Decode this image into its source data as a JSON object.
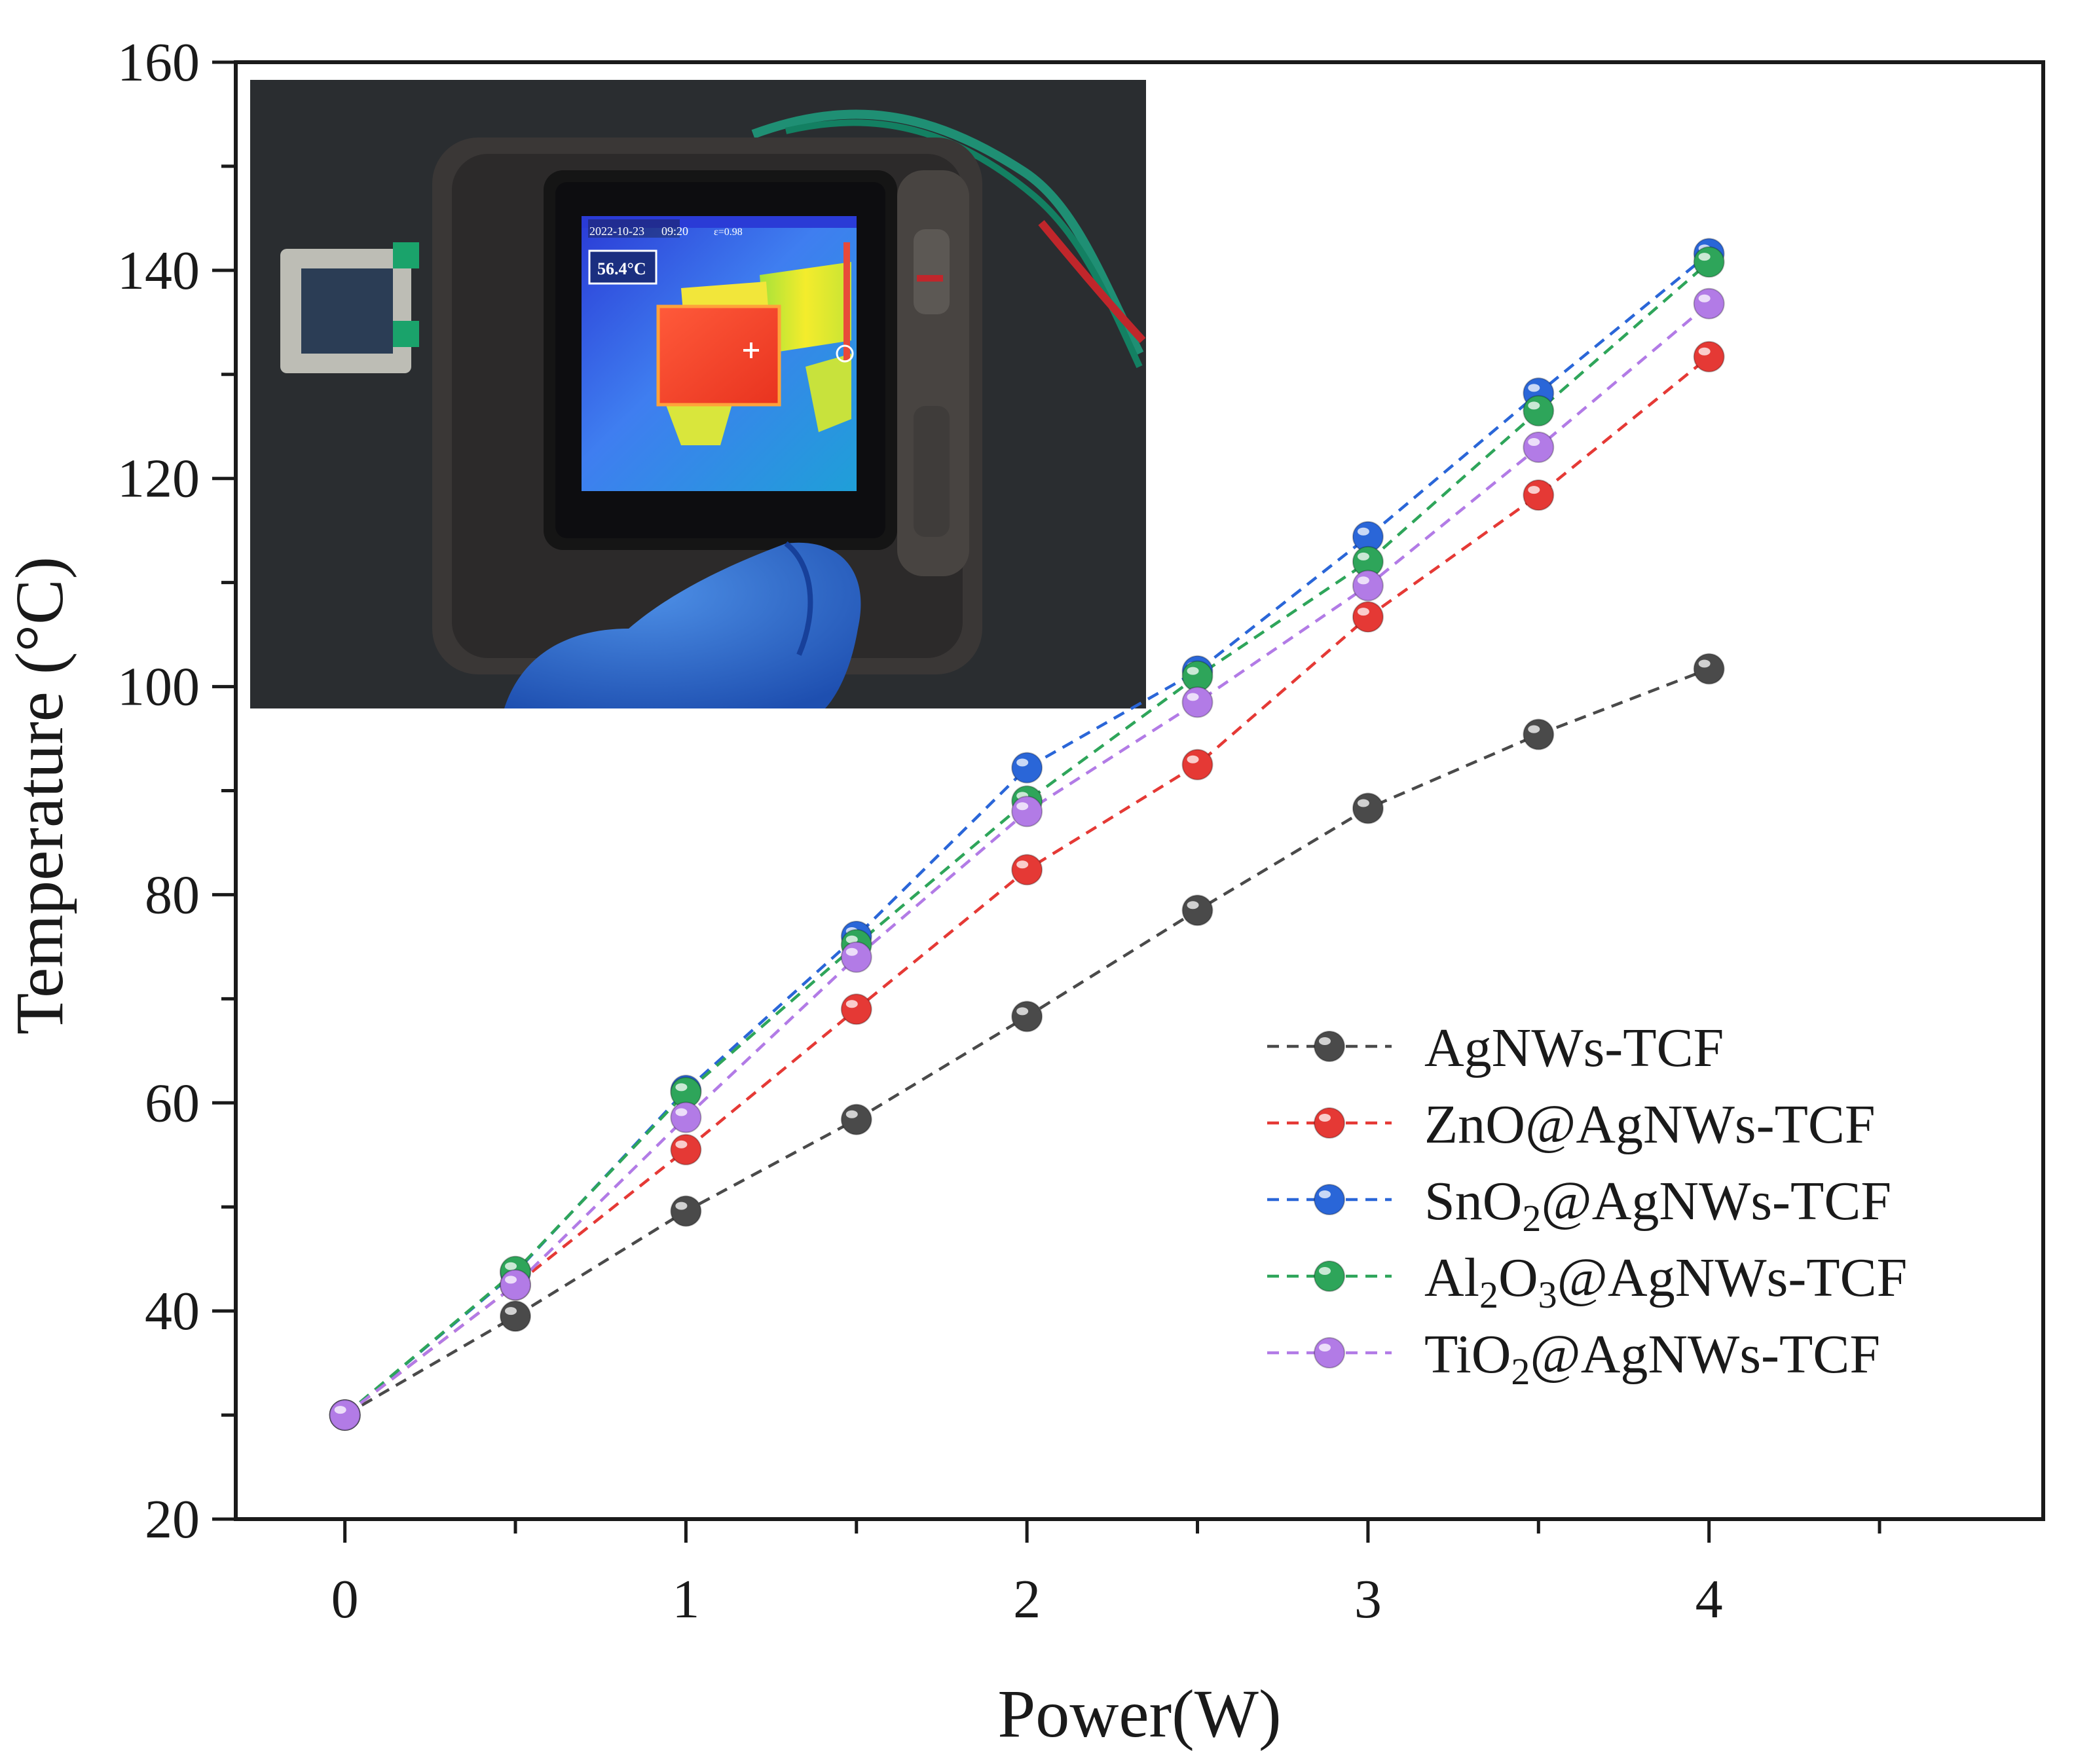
{
  "chart_data": {
    "type": "line",
    "xlabel": "Power(W)",
    "ylabel": "Temperature (°C)",
    "xlim": [
      -0.32,
      4.98
    ],
    "ylim": [
      20,
      160
    ],
    "x": [
      0,
      0.5,
      1,
      1.5,
      2,
      2.5,
      3,
      3.5,
      4
    ],
    "xticks": [
      0,
      1,
      2,
      3,
      4
    ],
    "xtick_labels": [
      "0",
      "1",
      "2",
      "3",
      "4"
    ],
    "yticks": [
      20,
      40,
      60,
      80,
      100,
      120,
      140,
      160
    ],
    "ytick_labels": [
      "20",
      "40",
      "60",
      "80",
      "100",
      "120",
      "140",
      "160"
    ],
    "grid": false,
    "legend_position": "bottom-right",
    "line_style": "dashed",
    "series": [
      {
        "name": "AgNWs-TCF",
        "name_parts": [
          {
            "t": "AgNWs-TCF"
          }
        ],
        "color": "#4a4a4a",
        "values": [
          30,
          39.5,
          49.6,
          58.4,
          68.3,
          78.5,
          88.3,
          95.4,
          101.7
        ]
      },
      {
        "name": "ZnO@AgNWs-TCF",
        "name_parts": [
          {
            "t": "ZnO@AgNWs-TCF"
          }
        ],
        "color": "#e53935",
        "values": [
          30,
          42.5,
          55.5,
          69,
          82.4,
          92.5,
          106.7,
          118.4,
          131.7
        ]
      },
      {
        "name": "SnO2@AgNWs-TCF",
        "name_parts": [
          {
            "t": "SnO"
          },
          {
            "t": "2",
            "sub": true
          },
          {
            "t": "@AgNWs-TCF"
          }
        ],
        "color": "#2a66d8",
        "values": [
          30,
          43.7,
          61.2,
          76,
          92.2,
          101.5,
          114.4,
          128.2,
          141.6
        ]
      },
      {
        "name": "Al2O3@AgNWs-TCF",
        "name_parts": [
          {
            "t": "Al"
          },
          {
            "t": "2",
            "sub": true
          },
          {
            "t": "O"
          },
          {
            "t": "3",
            "sub": true
          },
          {
            "t": "@AgNWs-TCF"
          }
        ],
        "color": "#2ea55a",
        "values": [
          30,
          43.8,
          61,
          75.2,
          89,
          101,
          112,
          126.5,
          140.8
        ]
      },
      {
        "name": "TiO2@AgNWs-TCF",
        "name_parts": [
          {
            "t": "TiO"
          },
          {
            "t": "2",
            "sub": true
          },
          {
            "t": "@AgNWs-TCF"
          }
        ],
        "color": "#b27be6",
        "values": [
          30,
          42.5,
          58.6,
          74,
          88,
          98.5,
          109.7,
          123,
          136.8
        ]
      }
    ]
  },
  "inset_photo": {
    "description_icon": "thermal-camera-photo",
    "date_readout": "2022-10-23",
    "time_readout": "09:20",
    "emissivity_readout": "ε=0.98",
    "temperature_readout": "56.4°C"
  }
}
